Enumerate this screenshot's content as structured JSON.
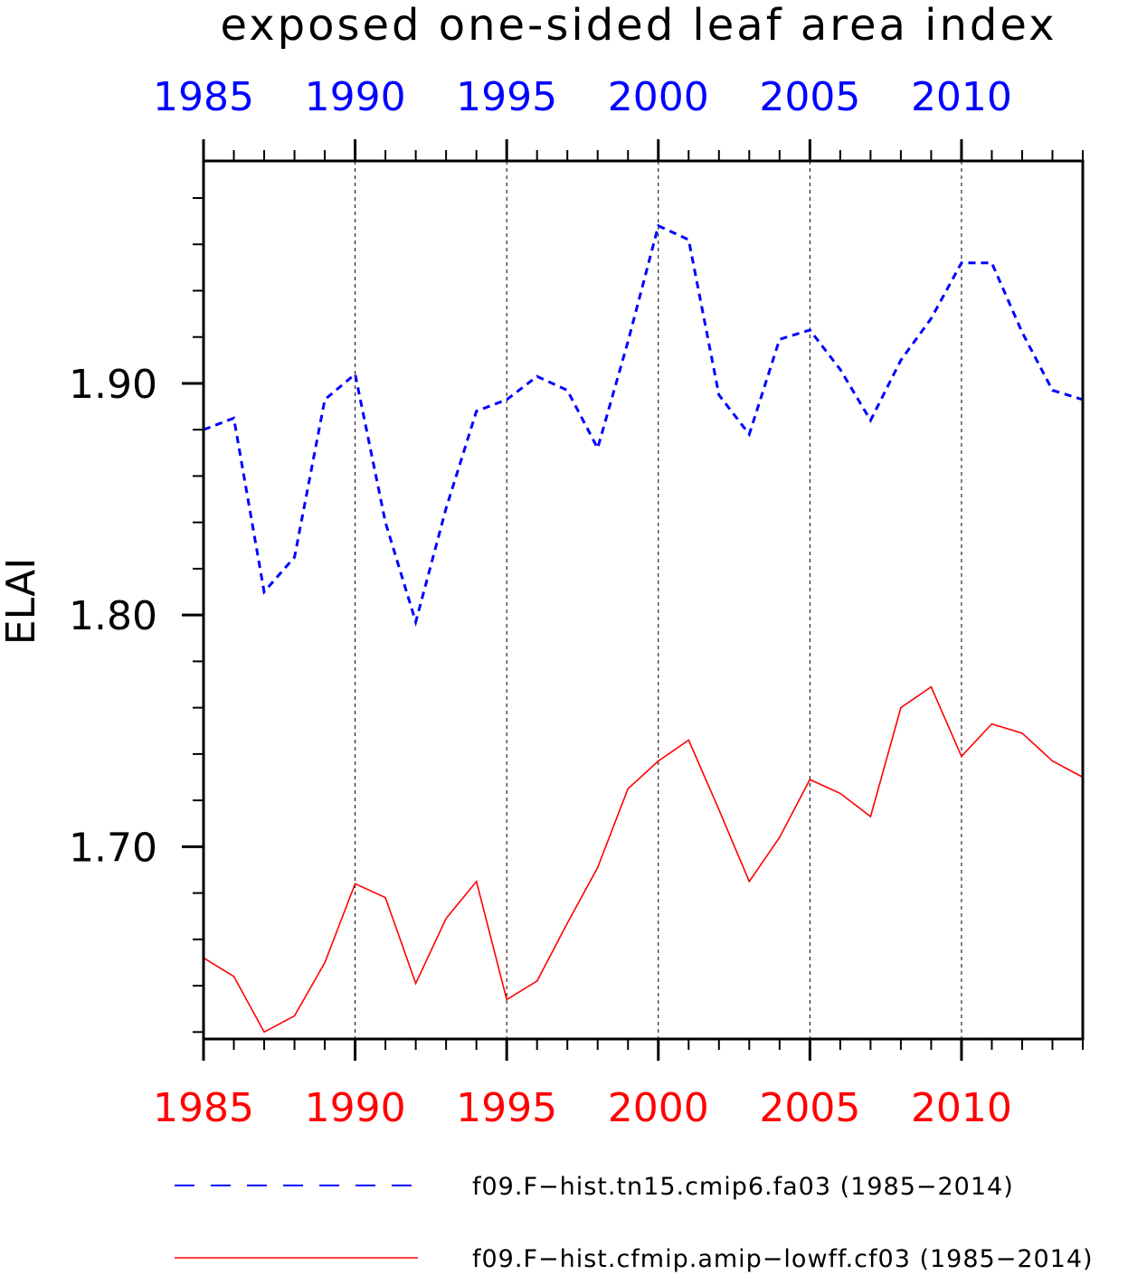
{
  "chart_data": {
    "type": "line",
    "title": "exposed one-sided leaf area index",
    "ylabel": "ELAI",
    "xlabel": "",
    "xlim": [
      1985,
      2014
    ],
    "ylim": [
      1.617,
      1.996
    ],
    "grid": "vertical dashed lines at 1990, 1995, 2000, 2005, 2010",
    "legend_position": "bottom",
    "x_ticks": [
      "1985",
      "1990",
      "1995",
      "2000",
      "2005",
      "2010"
    ],
    "y_ticks": [
      "1.70",
      "1.80",
      "1.90"
    ],
    "x": [
      1985,
      1986,
      1987,
      1988,
      1989,
      1990,
      1991,
      1992,
      1993,
      1994,
      1995,
      1996,
      1997,
      1998,
      1999,
      2000,
      2001,
      2002,
      2003,
      2004,
      2005,
      2006,
      2007,
      2008,
      2009,
      2010,
      2011,
      2012,
      2013,
      2014
    ],
    "series": [
      {
        "name": "f09.F−hist.tn15.cmip6.fa03 (1985−2014)",
        "color": "#0000ff",
        "style": "dashed",
        "values": [
          1.88,
          1.885,
          1.81,
          1.825,
          1.893,
          1.904,
          1.84,
          1.797,
          1.846,
          1.888,
          1.893,
          1.903,
          1.897,
          1.872,
          1.918,
          1.968,
          1.962,
          1.895,
          1.878,
          1.919,
          1.923,
          1.906,
          1.884,
          1.91,
          1.928,
          1.952,
          1.952,
          1.922,
          1.897,
          1.893
        ]
      },
      {
        "name": "f09.F−hist.cfmip.amip−lowff.cf03 (1985−2014)",
        "color": "#ff0000",
        "style": "solid",
        "values": [
          1.652,
          1.644,
          1.62,
          1.627,
          1.65,
          1.684,
          1.678,
          1.641,
          1.669,
          1.685,
          1.634,
          1.642,
          1.667,
          1.691,
          1.725,
          1.737,
          1.746,
          1.716,
          1.685,
          1.704,
          1.729,
          1.723,
          1.713,
          1.76,
          1.769,
          1.739,
          1.753,
          1.749,
          1.737,
          1.73
        ]
      }
    ]
  }
}
